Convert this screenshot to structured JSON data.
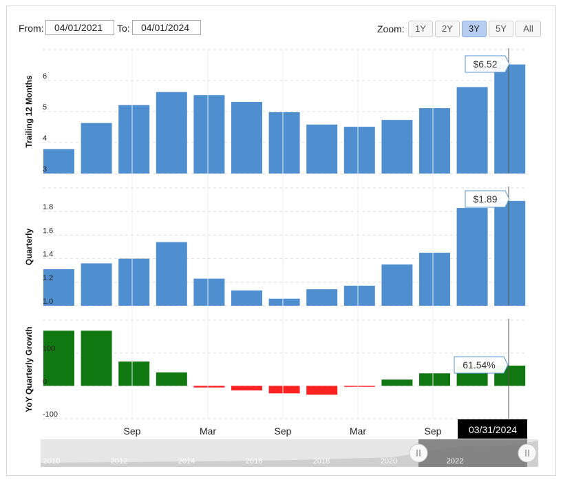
{
  "controls": {
    "from_label": "From:",
    "from_value": "04/01/2021",
    "to_label": "To:",
    "to_value": "04/01/2024",
    "zoom_label": "Zoom:",
    "zoom_options": [
      "1Y",
      "2Y",
      "3Y",
      "5Y",
      "All"
    ],
    "zoom_selected": "3Y"
  },
  "colors": {
    "bar_blue": "#4f8fd0",
    "growth_positive": "#117711",
    "growth_negative": "#ff2222"
  },
  "chart_data": [
    {
      "type": "bar",
      "ylabel": "Trailing 12 Months",
      "ylim": [
        3,
        7
      ],
      "yticks": [
        3,
        4,
        5,
        6
      ],
      "values": [
        3.79,
        4.63,
        5.21,
        5.63,
        5.53,
        5.31,
        4.98,
        4.58,
        4.51,
        4.73,
        5.11,
        5.79,
        6.52
      ],
      "tooltip": "$6.52"
    },
    {
      "type": "bar",
      "ylabel": "Quarterly",
      "ylim": [
        1.0,
        2.0
      ],
      "yticks": [
        1.0,
        1.2,
        1.4,
        1.6,
        1.8
      ],
      "values": [
        1.31,
        1.36,
        1.4,
        1.54,
        1.23,
        1.13,
        1.06,
        1.14,
        1.17,
        1.35,
        1.45,
        1.83,
        1.89
      ],
      "tooltip": "$1.89"
    },
    {
      "type": "bar",
      "ylabel": "YoY Quarterly Growth",
      "ylim": [
        -100,
        200
      ],
      "yticks": [
        -100,
        0,
        100
      ],
      "values": [
        168,
        168,
        74,
        41,
        -5,
        -14,
        -23,
        -27,
        -3,
        19,
        38,
        60,
        61.54
      ],
      "tooltip": "61.54%"
    }
  ],
  "x_axis": {
    "tick_labels": [
      "Sep",
      "Mar",
      "Sep",
      "Mar",
      "Sep"
    ],
    "crosshair_label": "03/31/2024"
  },
  "navigator": {
    "years": [
      "2010",
      "2012",
      "2014",
      "2016",
      "2018",
      "2020",
      "2022"
    ]
  }
}
